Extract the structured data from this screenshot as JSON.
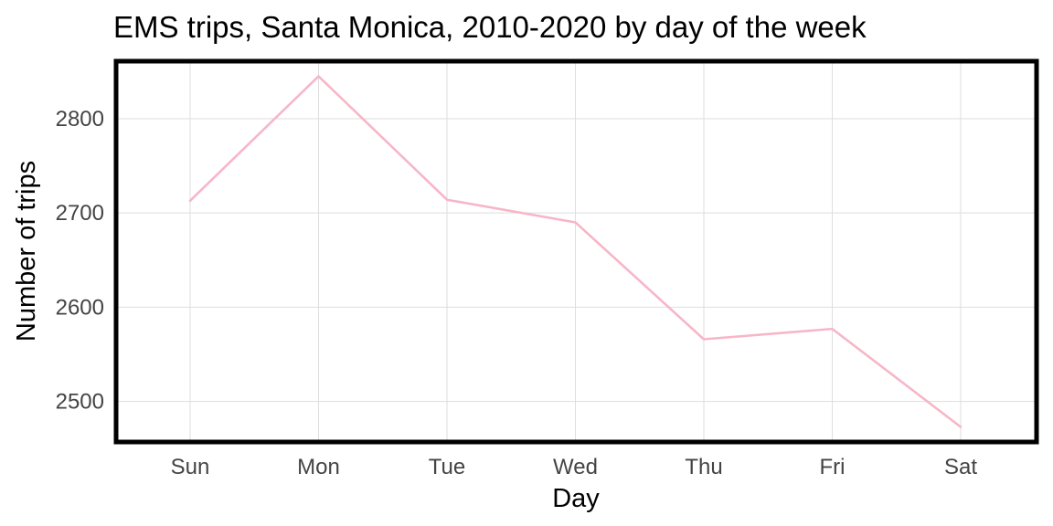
{
  "chart_data": {
    "type": "line",
    "title": "EMS trips, Santa Monica, 2010-2020 by day of the week",
    "xlabel": "Day",
    "ylabel": "Number of trips",
    "categories": [
      "Sun",
      "Mon",
      "Tue",
      "Wed",
      "Thu",
      "Fri",
      "Sat"
    ],
    "series": [
      {
        "values": [
          2713,
          2845,
          2714,
          2690,
          2566,
          2577,
          2473
        ],
        "color": "#f7b6c8"
      }
    ],
    "ylim": [
      2457,
      2861
    ],
    "yticks": [
      "2500",
      "2600",
      "2700",
      "2800"
    ],
    "grid": true,
    "frame_color": "#000000"
  }
}
